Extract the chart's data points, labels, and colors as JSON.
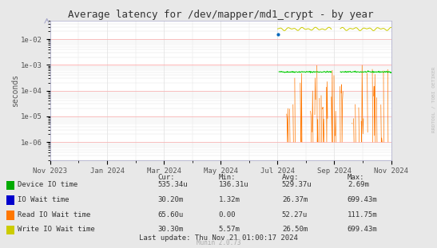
{
  "title": "Average latency for /dev/mapper/md1_crypt - by year",
  "ylabel": "seconds",
  "background_color": "#e8e8e8",
  "plot_bg_color": "#ffffff",
  "grid_color_major": "#ffaaaa",
  "grid_color_minor": "#e0e0e0",
  "watermark": "RRDTOOL / TOBI OETIKER",
  "munin_version": "Munin 2.0.73",
  "last_update": "Last update: Thu Nov 21 01:00:17 2024",
  "xticklabels": [
    "Nov 2023",
    "Jan 2024",
    "Mar 2024",
    "May 2024",
    "Jul 2024",
    "Sep 2024",
    "Nov 2024"
  ],
  "xtick_positions": [
    0,
    2,
    4,
    6,
    8,
    10,
    12
  ],
  "series": [
    {
      "name": "Device IO time",
      "color": "#00cc00",
      "legend_color": "#00aa00",
      "cur": "535.34u",
      "min": "136.31u",
      "avg": "529.37u",
      "max": "2.69m"
    },
    {
      "name": "IO Wait time",
      "color": "#0066bb",
      "legend_color": "#0000cc",
      "cur": "30.20m",
      "min": "1.32m",
      "avg": "26.37m",
      "max": "699.43m"
    },
    {
      "name": "Read IO Wait time",
      "color": "#ff7700",
      "legend_color": "#ff7700",
      "cur": "65.60u",
      "min": "0.00",
      "avg": "52.27u",
      "max": "111.75m"
    },
    {
      "name": "Write IO Wait time",
      "color": "#cccc00",
      "legend_color": "#cccc00",
      "cur": "30.30m",
      "min": "5.57m",
      "avg": "26.50m",
      "max": "699.43m"
    }
  ],
  "legend_colors": [
    "#00aa00",
    "#0000cc",
    "#ff7700",
    "#cccc00"
  ]
}
